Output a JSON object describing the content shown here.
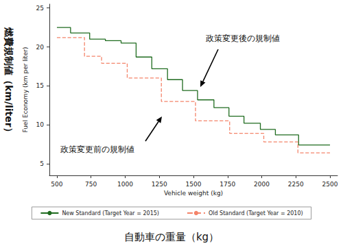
{
  "chart_data": {
    "type": "line",
    "xlabel": "Vehicle weight (kg)",
    "ylabel": "Fuel Economy (km per liter)",
    "outer_xlabel": "自動車の重量（kg）",
    "outer_ylabel": "燃費規制値（km/liter）",
    "annotations": [
      {
        "text": "政策変更後の規制値",
        "series": "New Standard (Target Year = 2015)"
      },
      {
        "text": "政策変更前の規制値",
        "series": "Old Standard (Target Year = 2010)"
      }
    ],
    "xlim": [
      445,
      2555
    ],
    "xticks": [
      500,
      750,
      1000,
      1250,
      1500,
      1750,
      2000,
      2250,
      2500
    ],
    "ylim": [
      3.5,
      25.5
    ],
    "yticks": [
      5,
      10,
      15,
      20,
      25
    ],
    "grid": false,
    "legend": "bottom",
    "series": [
      {
        "name": "New Standard (Target Year = 2015)",
        "color": "#1e6b1e",
        "line_style": "solid",
        "x": [
          500,
          600,
          740,
          855,
          970,
          1080,
          1195,
          1310,
          1420,
          1530,
          1650,
          1760,
          1870,
          1990,
          2100,
          2270,
          2500
        ],
        "values": [
          22.5,
          21.8,
          21.0,
          20.8,
          20.5,
          18.7,
          17.2,
          15.8,
          14.4,
          13.2,
          12.2,
          11.1,
          10.2,
          9.4,
          8.7,
          7.4,
          7.4
        ]
      },
      {
        "name": "Old Standard (Target Year = 2010)",
        "color": "#f4846a",
        "line_style": "dashed",
        "x": [
          500,
          702,
          827,
          1015,
          1265,
          1515,
          1765,
          2015,
          2265,
          2500
        ],
        "values": [
          21.2,
          18.8,
          17.9,
          16.0,
          13.0,
          10.5,
          8.9,
          7.8,
          6.4,
          6.4
        ]
      }
    ]
  }
}
